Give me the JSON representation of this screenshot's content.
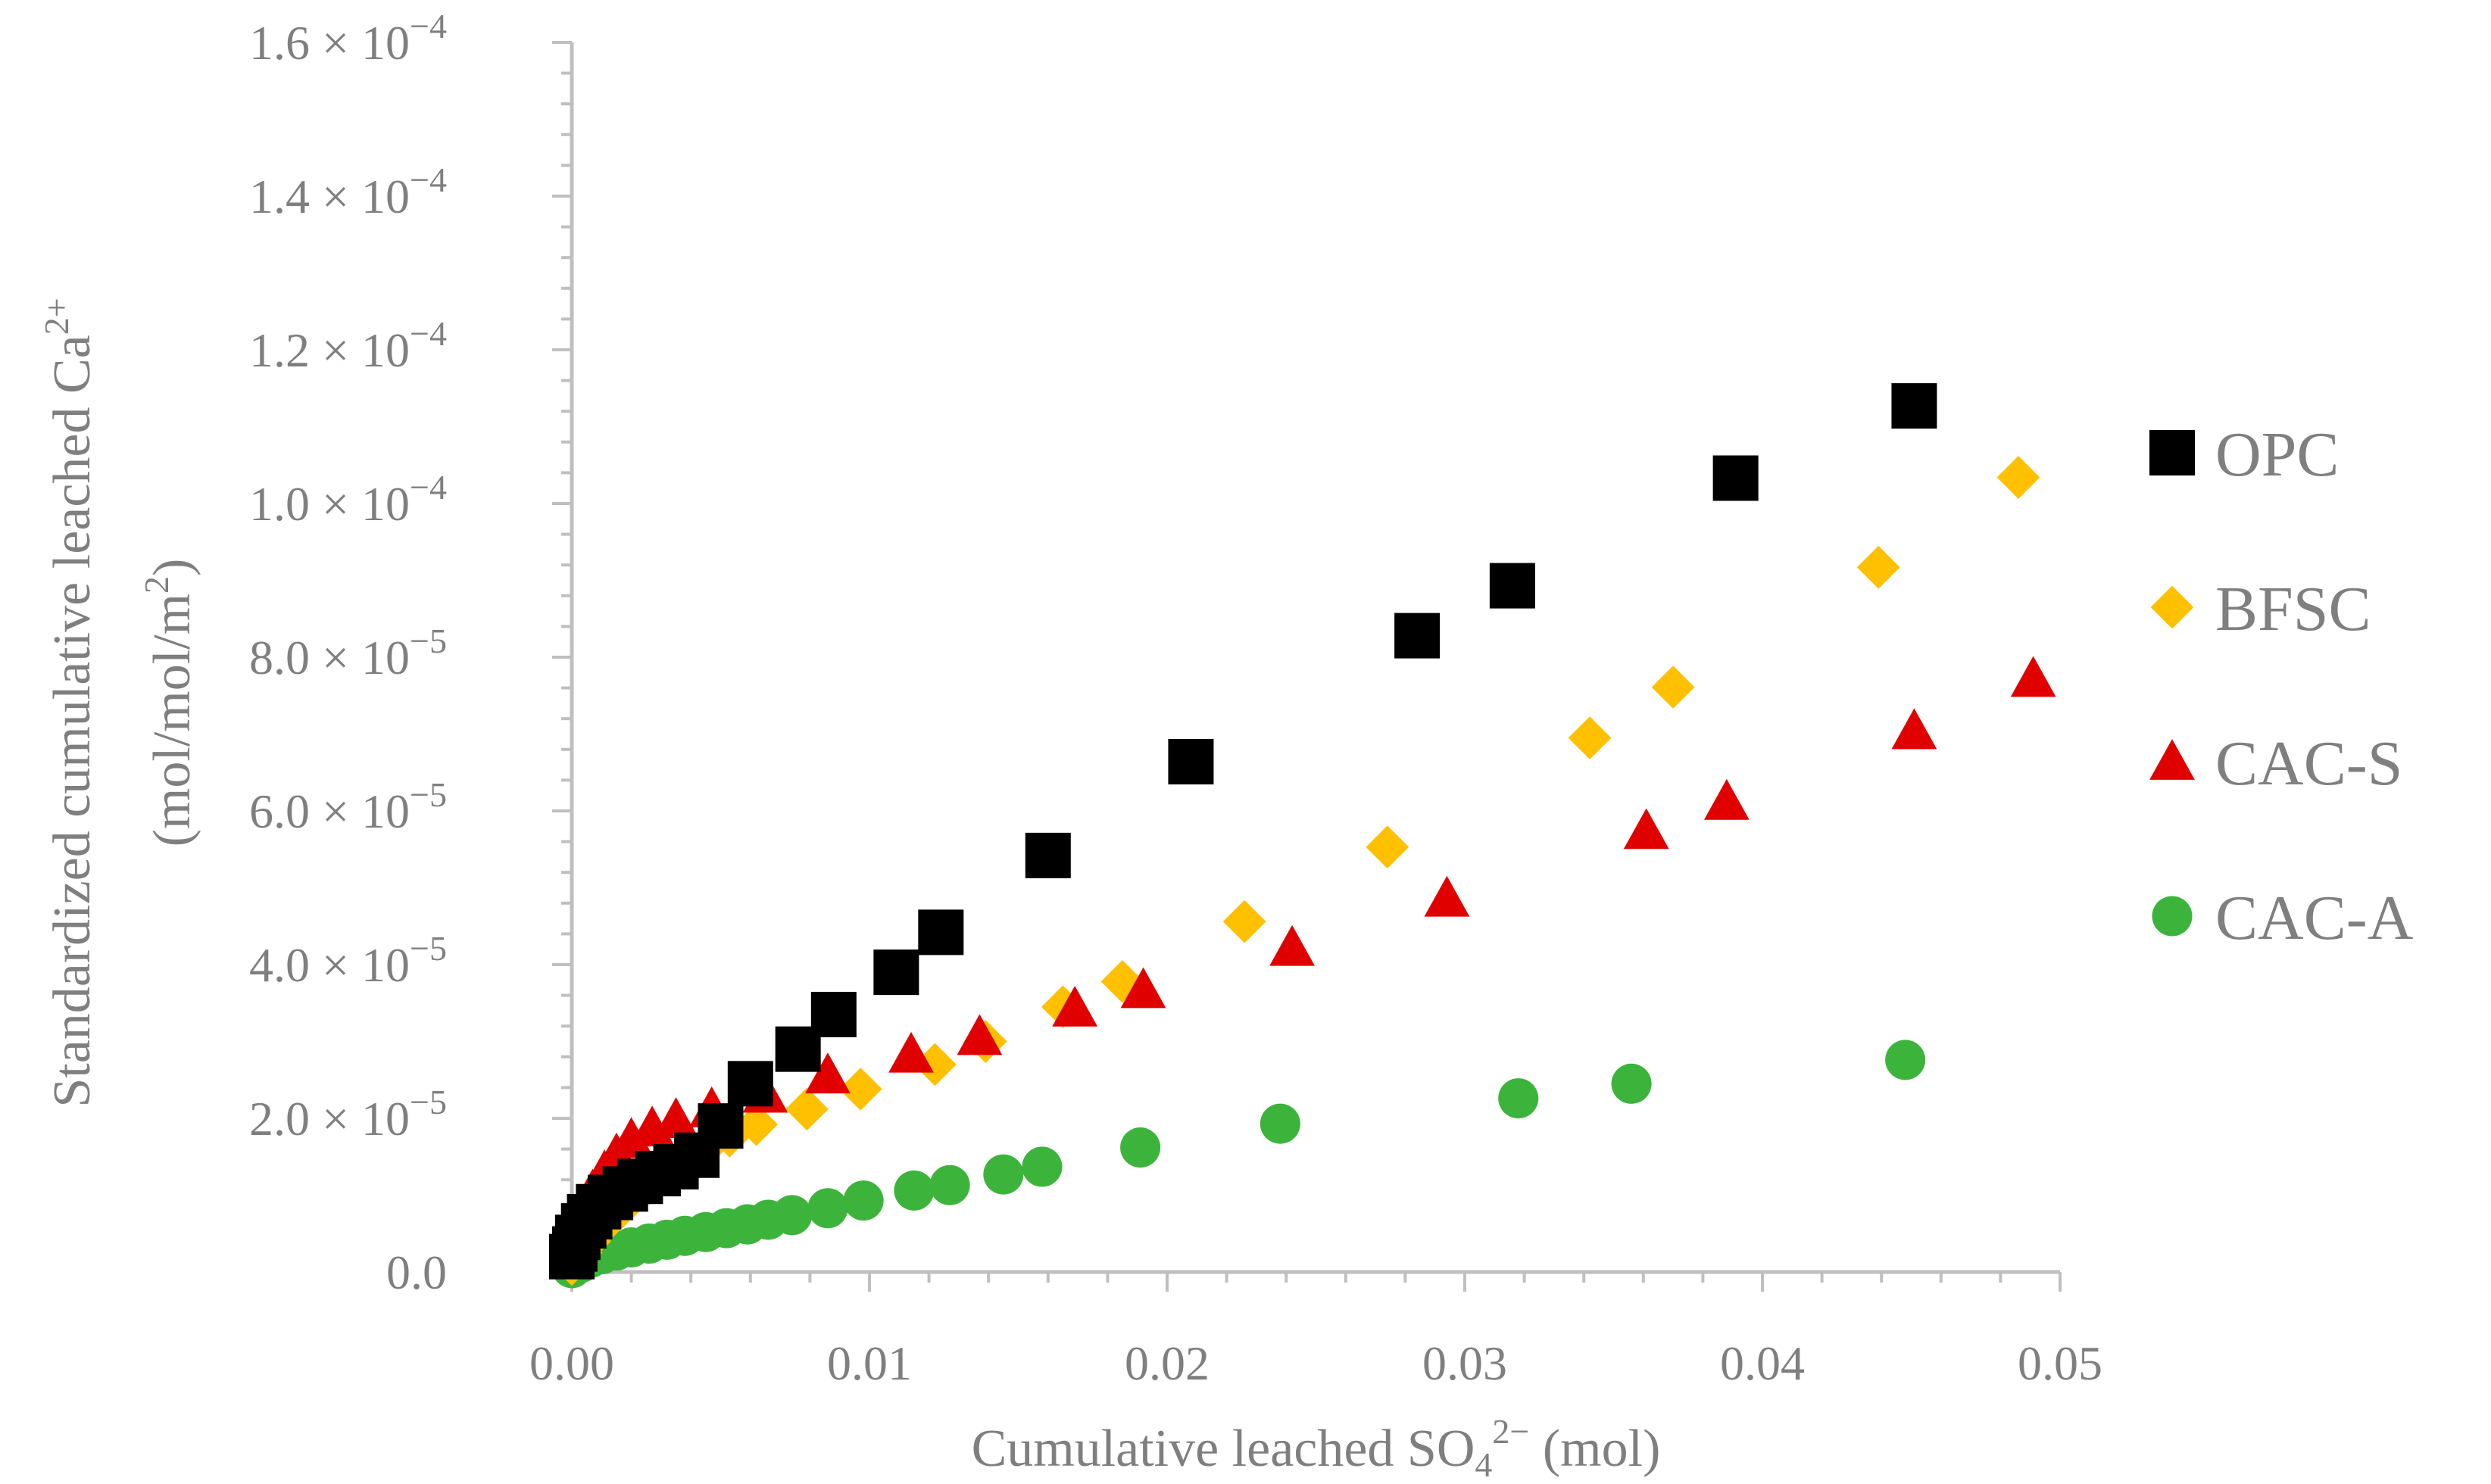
{
  "chart_data": {
    "type": "scatter",
    "title": "",
    "xlabel": {
      "main": "Cumulative leached SO",
      "sub": "4",
      "sup": "2−",
      "tail": " (mol)"
    },
    "ylabel": {
      "line1": {
        "main": "Standardized cumulative leached Ca",
        "sup": "2+"
      },
      "line2": {
        "main": "(mol/mol/m",
        "sup": "2",
        "tail": ")"
      }
    },
    "xlim": [
      0,
      0.05
    ],
    "ylim": [
      0,
      0.00016
    ],
    "grid": false,
    "legend_position": "right",
    "x_ticks": [
      {
        "value": 0.0,
        "label": "0.00"
      },
      {
        "value": 0.01,
        "label": "0.01"
      },
      {
        "value": 0.02,
        "label": "0.02"
      },
      {
        "value": 0.03,
        "label": "0.03"
      },
      {
        "value": 0.04,
        "label": "0.04"
      },
      {
        "value": 0.05,
        "label": "0.05"
      }
    ],
    "y_ticks": [
      {
        "value": 0,
        "mant": "0.0",
        "exp": ""
      },
      {
        "value": 2e-05,
        "mant": "2.0 × 10",
        "exp": "−5"
      },
      {
        "value": 4e-05,
        "mant": "4.0 × 10",
        "exp": "−5"
      },
      {
        "value": 6e-05,
        "mant": "6.0 × 10",
        "exp": "−5"
      },
      {
        "value": 8e-05,
        "mant": "8.0 × 10",
        "exp": "−5"
      },
      {
        "value": 0.0001,
        "mant": "1.0 × 10",
        "exp": "−4"
      },
      {
        "value": 0.00012,
        "mant": "1.2 × 10",
        "exp": "−4"
      },
      {
        "value": 0.00014,
        "mant": "1.4 × 10",
        "exp": "−4"
      },
      {
        "value": 0.00016,
        "mant": "1.6 × 10",
        "exp": "−4"
      }
    ],
    "series": [
      {
        "name": "OPC",
        "marker": "square",
        "color": "#000000",
        "points": [
          [
            0.0,
            2e-06
          ],
          [
            0.0001,
            3e-06
          ],
          [
            0.0002,
            4.5e-06
          ],
          [
            0.0004,
            6e-06
          ],
          [
            0.0006,
            7.2e-06
          ],
          [
            0.0009,
            8.5e-06
          ],
          [
            0.0013,
            9.7e-06
          ],
          [
            0.0018,
            1.08e-05
          ],
          [
            0.0023,
            1.18e-05
          ],
          [
            0.0029,
            1.28e-05
          ],
          [
            0.0035,
            1.37e-05
          ],
          [
            0.0042,
            1.52e-05
          ],
          [
            0.005,
            1.9e-05
          ],
          [
            0.006,
            2.45e-05
          ],
          [
            0.0076,
            2.9e-05
          ],
          [
            0.0088,
            3.35e-05
          ],
          [
            0.0109,
            3.9e-05
          ],
          [
            0.0124,
            4.42e-05
          ],
          [
            0.016,
            5.42e-05
          ],
          [
            0.0208,
            6.64e-05
          ],
          [
            0.0284,
            8.28e-05
          ],
          [
            0.0316,
            8.93e-05
          ],
          [
            0.0391,
            0.0001033
          ],
          [
            0.0451,
            0.0001127
          ]
        ]
      },
      {
        "name": "BFSC",
        "marker": "diamond",
        "color": "#ffc000",
        "points": [
          [
            0.0,
            1e-06
          ],
          [
            0.0003,
            2.5e-06
          ],
          [
            0.0006,
            4e-06
          ],
          [
            0.0009,
            5.5e-06
          ],
          [
            0.0013,
            7e-06
          ],
          [
            0.0017,
            8.5e-06
          ],
          [
            0.0021,
            1e-05
          ],
          [
            0.0026,
            1.15e-05
          ],
          [
            0.0031,
            1.3e-05
          ],
          [
            0.0037,
            1.45e-05
          ],
          [
            0.0045,
            1.62e-05
          ],
          [
            0.0053,
            1.77e-05
          ],
          [
            0.0062,
            1.92e-05
          ],
          [
            0.0079,
            2.12e-05
          ],
          [
            0.0097,
            2.38e-05
          ],
          [
            0.0122,
            2.7e-05
          ],
          [
            0.0139,
            3e-05
          ],
          [
            0.0165,
            3.45e-05
          ],
          [
            0.0185,
            3.78e-05
          ],
          [
            0.0226,
            4.56e-05
          ],
          [
            0.0274,
            5.53e-05
          ],
          [
            0.0342,
            6.95e-05
          ],
          [
            0.037,
            7.61e-05
          ],
          [
            0.0439,
            9.17e-05
          ],
          [
            0.0486,
            0.0001034
          ]
        ]
      },
      {
        "name": "CAC-S",
        "marker": "triangle",
        "color": "#e00000",
        "points": [
          [
            0.0,
            1.5e-06
          ],
          [
            0.0002,
            4.5e-06
          ],
          [
            0.0004,
            7.5e-06
          ],
          [
            0.0007,
            1.05e-05
          ],
          [
            0.0011,
            1.3e-05
          ],
          [
            0.0015,
            1.52e-05
          ],
          [
            0.002,
            1.72e-05
          ],
          [
            0.0027,
            1.87e-05
          ],
          [
            0.0035,
            1.98e-05
          ],
          [
            0.0047,
            2.12e-05
          ],
          [
            0.0065,
            2.31e-05
          ],
          [
            0.0086,
            2.56e-05
          ],
          [
            0.0114,
            2.83e-05
          ],
          [
            0.0137,
            3.06e-05
          ],
          [
            0.0169,
            3.43e-05
          ],
          [
            0.0192,
            3.67e-05
          ],
          [
            0.0242,
            4.22e-05
          ],
          [
            0.0294,
            4.86e-05
          ],
          [
            0.0361,
            5.74e-05
          ],
          [
            0.0388,
            6.12e-05
          ],
          [
            0.0451,
            7.04e-05
          ],
          [
            0.0491,
            7.72e-05
          ]
        ]
      },
      {
        "name": "CAC-A",
        "marker": "circle",
        "color": "#3cb43c",
        "points": [
          [
            0.0,
            5e-07
          ],
          [
            0.0003,
            1.2e-06
          ],
          [
            0.0006,
            1.8e-06
          ],
          [
            0.001,
            2.3e-06
          ],
          [
            0.0015,
            2.8e-06
          ],
          [
            0.002,
            3.2e-06
          ],
          [
            0.0026,
            3.7e-06
          ],
          [
            0.0032,
            4.2e-06
          ],
          [
            0.0038,
            4.7e-06
          ],
          [
            0.0045,
            5.2e-06
          ],
          [
            0.0052,
            5.7e-06
          ],
          [
            0.0059,
            6.2e-06
          ],
          [
            0.0066,
            6.8e-06
          ],
          [
            0.0074,
            7.4e-06
          ],
          [
            0.0086,
            8.3e-06
          ],
          [
            0.0098,
            9.3e-06
          ],
          [
            0.0115,
            1.06e-05
          ],
          [
            0.0127,
            1.13e-05
          ],
          [
            0.0145,
            1.27e-05
          ],
          [
            0.0158,
            1.37e-05
          ],
          [
            0.0191,
            1.62e-05
          ],
          [
            0.0238,
            1.93e-05
          ],
          [
            0.0318,
            2.26e-05
          ],
          [
            0.0356,
            2.45e-05
          ],
          [
            0.0448,
            2.76e-05
          ]
        ]
      }
    ]
  },
  "colors": {
    "axis": "#bfbfbf",
    "text": "#7f7f7f"
  }
}
